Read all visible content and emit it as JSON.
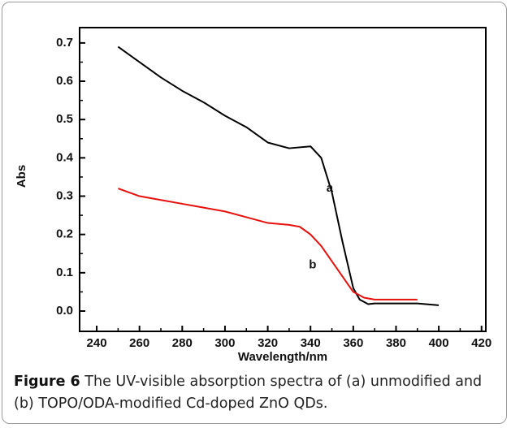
{
  "chart_data": {
    "type": "line",
    "caption_label": "Figure 6",
    "caption": "The UV-visible absorption spectra of (a) unmodified and (b) TOPO/ODA-modified Cd-doped ZnO QDs.",
    "xlabel": "Wavelength/nm",
    "ylabel": "Abs",
    "xlim": [
      232,
      422
    ],
    "ylim": [
      -0.053,
      0.74
    ],
    "xticks": [
      240,
      260,
      280,
      300,
      320,
      340,
      360,
      380,
      400,
      420
    ],
    "yticks": [
      {
        "value": 0,
        "label": "0.0"
      },
      0.1,
      0.2,
      0.3,
      0.4,
      0.5,
      0.6,
      0.7
    ],
    "annotations": [
      "a",
      "b"
    ],
    "series": [
      {
        "name": "a",
        "color": "#000000",
        "x": [
          250,
          260,
          270,
          280,
          290,
          300,
          310,
          320,
          330,
          340,
          345,
          350,
          355,
          360,
          363,
          367,
          370,
          380,
          390,
          400
        ],
        "values": [
          0.69,
          0.65,
          0.61,
          0.575,
          0.545,
          0.51,
          0.48,
          0.44,
          0.425,
          0.43,
          0.4,
          0.31,
          0.18,
          0.06,
          0.03,
          0.018,
          0.02,
          0.02,
          0.02,
          0.015
        ]
      },
      {
        "name": "b",
        "color": "#e8100c",
        "x": [
          250,
          260,
          270,
          280,
          290,
          300,
          310,
          320,
          330,
          335,
          340,
          345,
          350,
          355,
          360,
          365,
          370,
          380,
          390
        ],
        "values": [
          0.32,
          0.3,
          0.29,
          0.28,
          0.27,
          0.26,
          0.245,
          0.23,
          0.225,
          0.22,
          0.2,
          0.17,
          0.13,
          0.09,
          0.05,
          0.035,
          0.03,
          0.03,
          0.03
        ]
      }
    ]
  }
}
